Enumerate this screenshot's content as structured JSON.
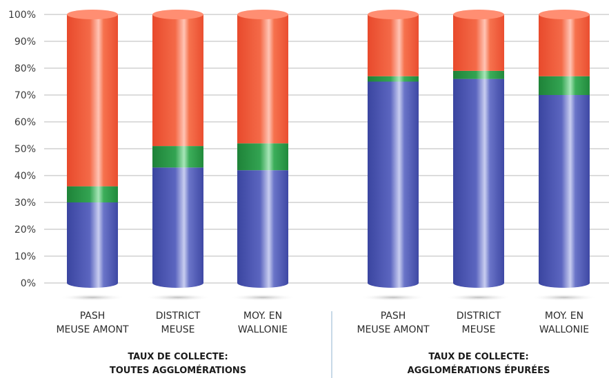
{
  "colors": {
    "blue": "#4c56b0",
    "green": "#2e9a4a",
    "red": "#f06040",
    "grid": "#b8b8b8",
    "divider": "#8fb3cf"
  },
  "chart_data": {
    "type": "bar",
    "stacked": true,
    "ylim": [
      0,
      100
    ],
    "yticks": [
      "0%",
      "10%",
      "20%",
      "30%",
      "40%",
      "50%",
      "60%",
      "70%",
      "80%",
      "90%",
      "100%"
    ],
    "grid": true,
    "groups": [
      {
        "title_lines": [
          "TAUX DE COLLECTE:",
          "TOUTES AGGLOMÉRATIONS"
        ],
        "bars": [
          {
            "label_lines": [
              "PASH",
              "MEUSE AMONT"
            ],
            "segments": [
              30,
              6,
              64
            ]
          },
          {
            "label_lines": [
              "DISTRICT",
              "MEUSE"
            ],
            "segments": [
              43,
              8,
              49
            ]
          },
          {
            "label_lines": [
              "MOY. EN",
              "WALLONIE"
            ],
            "segments": [
              42,
              10,
              48
            ]
          }
        ]
      },
      {
        "title_lines": [
          "TAUX DE COLLECTE:",
          "AGGLOMÉRATIONS ÉPURÉES"
        ],
        "bars": [
          {
            "label_lines": [
              "PASH",
              "MEUSE AMONT"
            ],
            "segments": [
              75,
              2,
              23
            ]
          },
          {
            "label_lines": [
              "DISTRICT",
              "MEUSE"
            ],
            "segments": [
              76,
              3,
              21
            ]
          },
          {
            "label_lines": [
              "MOY. EN",
              "WALLONIE"
            ],
            "segments": [
              70,
              7,
              23
            ]
          }
        ]
      }
    ]
  }
}
